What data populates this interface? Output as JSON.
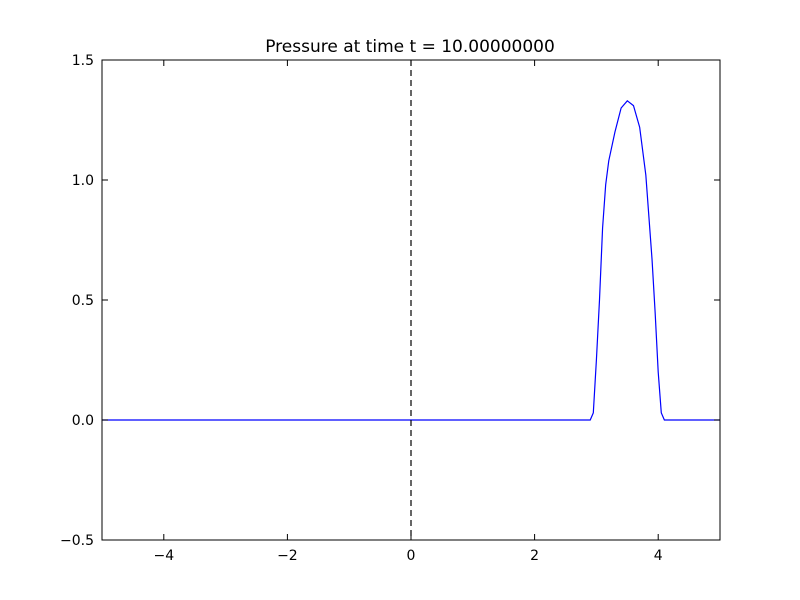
{
  "chart_data": {
    "type": "line",
    "title": "Pressure at time t =    10.00000000",
    "x": [
      -5,
      2.9,
      2.95,
      3.0,
      3.05,
      3.1,
      3.15,
      3.2,
      3.3,
      3.4,
      3.5,
      3.6,
      3.7,
      3.8,
      3.9,
      3.95,
      4.0,
      4.05,
      4.1,
      5
    ],
    "series": [
      {
        "name": "pressure",
        "color": "#0000ff",
        "values": [
          0,
          0,
          0.03,
          0.25,
          0.5,
          0.8,
          0.98,
          1.08,
          1.2,
          1.3,
          1.33,
          1.31,
          1.22,
          1.02,
          0.67,
          0.45,
          0.2,
          0.03,
          0,
          0
        ]
      }
    ],
    "vlines": [
      0
    ],
    "vline_color": "#000000",
    "xlim": [
      -5,
      5
    ],
    "ylim": [
      -0.5,
      1.5
    ],
    "xticks": [
      {
        "value": -4,
        "label": "−4"
      },
      {
        "value": -2,
        "label": "−2"
      },
      0,
      2,
      4
    ],
    "yticks": [
      {
        "value": -0.5,
        "label": "−0.5"
      },
      {
        "value": 0,
        "label": "0.0"
      },
      {
        "value": 0.5,
        "label": "0.5"
      },
      {
        "value": 1,
        "label": "1.0"
      },
      {
        "value": 1.5,
        "label": "1.5"
      }
    ],
    "grid": false
  }
}
